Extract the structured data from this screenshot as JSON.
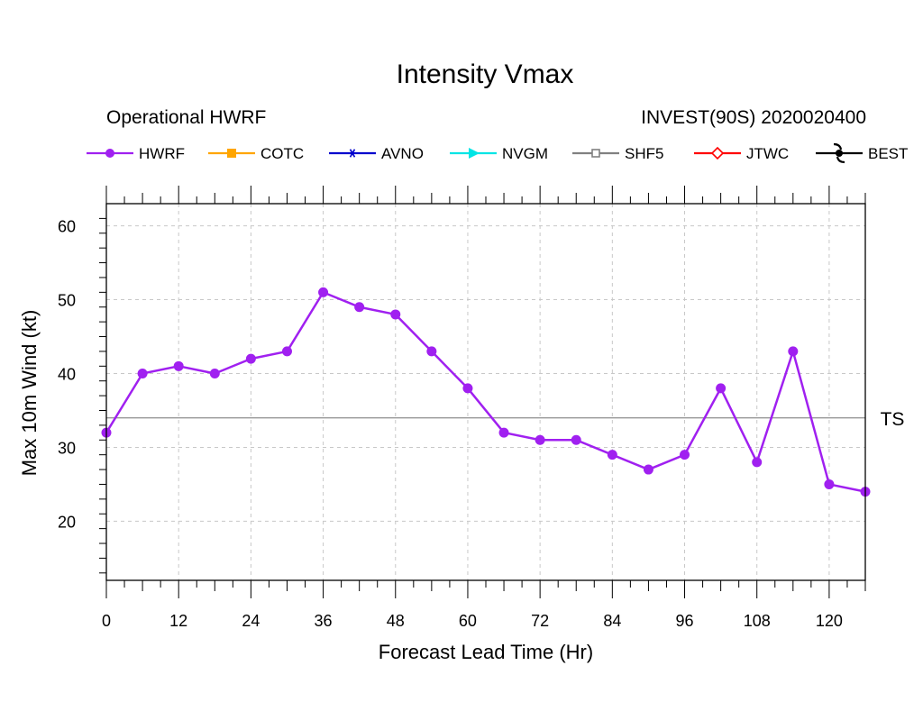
{
  "chart_data": {
    "type": "line",
    "title": "Intensity Vmax",
    "subtitle_left": "Operational HWRF",
    "subtitle_right": "INVEST(90S) 2020020400",
    "xlabel": "Forecast Lead Time (Hr)",
    "ylabel": "Max 10m Wind (kt)",
    "xlim": [
      0,
      126
    ],
    "ylim": [
      12,
      63
    ],
    "x_ticks": [
      0,
      12,
      24,
      36,
      48,
      60,
      72,
      84,
      96,
      108,
      120
    ],
    "y_ticks": [
      20,
      30,
      40,
      50,
      60
    ],
    "grid": true,
    "legend_position": "top",
    "legend": [
      {
        "name": "HWRF",
        "color": "#a020f0",
        "marker": "circle"
      },
      {
        "name": "COTC",
        "color": "#ffa500",
        "marker": "square"
      },
      {
        "name": "AVNO",
        "color": "#0000cd",
        "marker": "asterisk"
      },
      {
        "name": "NVGM",
        "color": "#00e5e5",
        "marker": "triangle"
      },
      {
        "name": "SHF5",
        "color": "#808080",
        "marker": "open-square"
      },
      {
        "name": "JTWC",
        "color": "#ff0000",
        "marker": "diamond"
      },
      {
        "name": "BEST",
        "color": "#000000",
        "marker": "hurricane"
      }
    ],
    "reference_line": {
      "label": "TS",
      "value": 34,
      "color": "#999999"
    },
    "series": [
      {
        "name": "HWRF",
        "color": "#a020f0",
        "x": [
          0,
          6,
          12,
          18,
          24,
          30,
          36,
          42,
          48,
          54,
          60,
          66,
          72,
          78,
          84,
          90,
          96,
          102,
          108,
          114,
          120,
          126
        ],
        "values": [
          32,
          40,
          41,
          40,
          42,
          43,
          51,
          49,
          48,
          43,
          38,
          32,
          31,
          31,
          29,
          27,
          29,
          38,
          28,
          43,
          25,
          24
        ]
      }
    ]
  }
}
